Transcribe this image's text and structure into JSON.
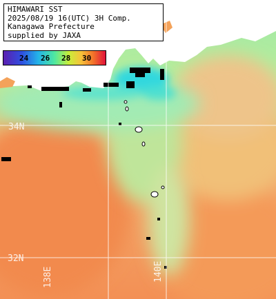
{
  "title": {
    "lines": [
      "HIMAWARI SST",
      "2025/08/19 16(UTC) 3H Comp.",
      "Kanagawa Prefecture",
      "supplied by JAXA"
    ]
  },
  "colorbar": {
    "ticks": [
      "24",
      "26",
      "28",
      "30"
    ]
  },
  "grid": {
    "lat_labels": [
      "34N",
      "32N"
    ],
    "lon_labels": [
      "138E",
      "140E"
    ]
  },
  "colors": {
    "land": "#ffffff",
    "no_data": "#000000",
    "warm_sea": "#f39a5a",
    "cool_sea": "#8fe6a8",
    "coastal_cyan": "#3fd6e0",
    "grid_line": "#ffffff"
  }
}
